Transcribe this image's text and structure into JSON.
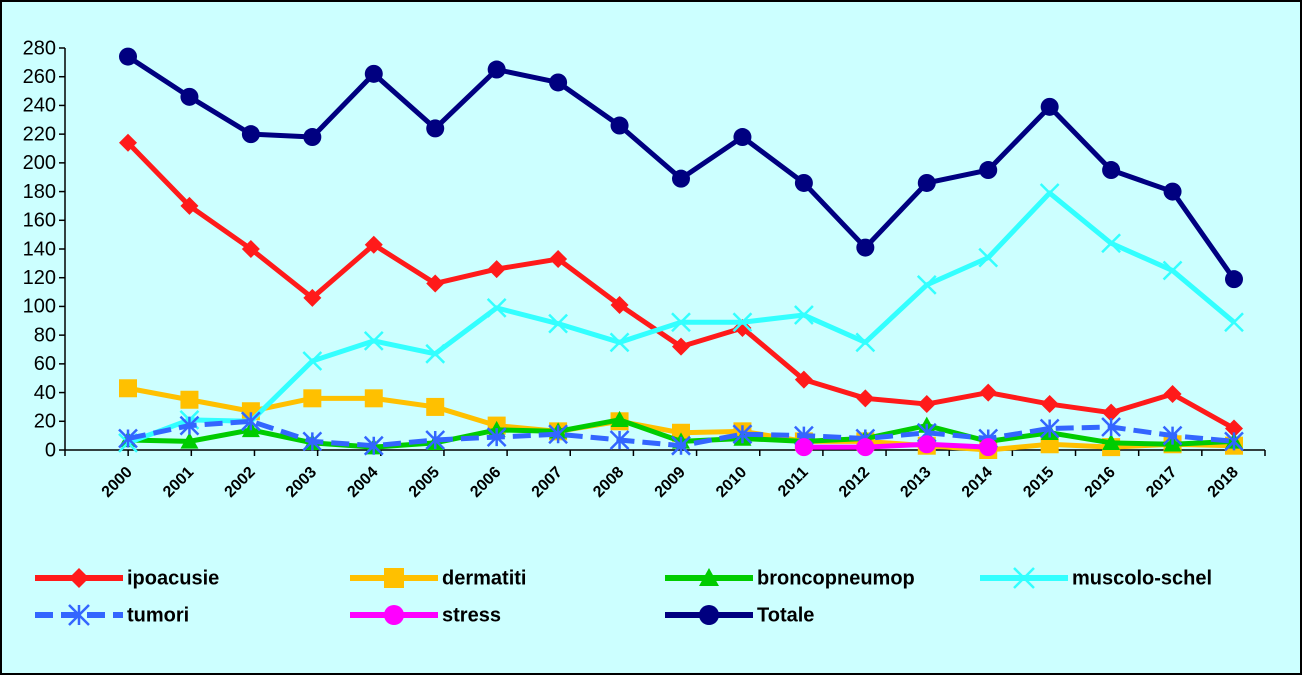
{
  "chart_data": {
    "type": "line",
    "categories": [
      "2000",
      "2001",
      "2002",
      "2003",
      "2004",
      "2005",
      "2006",
      "2007",
      "2008",
      "2009",
      "2010",
      "2011",
      "2012",
      "2013",
      "2014",
      "2015",
      "2016",
      "2017",
      "2018"
    ],
    "ylim": [
      0,
      280
    ],
    "yticks": [
      0,
      20,
      40,
      60,
      80,
      100,
      120,
      140,
      160,
      180,
      200,
      220,
      240,
      260,
      280
    ],
    "series": [
      {
        "name": "ipoacusie",
        "color": "#ff1a1a",
        "marker": "diamond",
        "values": [
          214,
          170,
          140,
          106,
          143,
          116,
          126,
          133,
          101,
          72,
          85,
          49,
          36,
          32,
          40,
          32,
          26,
          39,
          15
        ]
      },
      {
        "name": "dermatiti",
        "color": "#ffc000",
        "marker": "square",
        "values": [
          43,
          35,
          27,
          36,
          36,
          30,
          17,
          13,
          20,
          12,
          13,
          6,
          6,
          3,
          0,
          4,
          2,
          4,
          3
        ]
      },
      {
        "name": "broncopneumop",
        "color": "#00cc00",
        "marker": "triangle",
        "values": [
          7,
          6,
          14,
          5,
          2,
          5,
          14,
          13,
          21,
          6,
          8,
          6,
          8,
          17,
          6,
          12,
          5,
          4,
          6
        ]
      },
      {
        "name": "muscolo-schel",
        "color": "#33ffff",
        "marker": "x",
        "values": [
          5,
          21,
          20,
          62,
          76,
          67,
          99,
          88,
          75,
          89,
          89,
          94,
          75,
          115,
          134,
          179,
          144,
          125,
          89
        ]
      },
      {
        "name": "tumori",
        "color": "#3366ff",
        "marker": "star",
        "dash": true,
        "values": [
          8,
          17,
          20,
          6,
          3,
          7,
          9,
          11,
          7,
          3,
          11,
          10,
          8,
          12,
          8,
          15,
          16,
          10,
          6
        ]
      },
      {
        "name": "stress",
        "color": "#ff00ff",
        "marker": "circle",
        "values": [
          null,
          null,
          null,
          null,
          null,
          null,
          null,
          null,
          null,
          null,
          null,
          2,
          2,
          4,
          2,
          null,
          null,
          null,
          null
        ]
      },
      {
        "name": "Totale",
        "color": "#000080",
        "marker": "circle",
        "values": [
          274,
          246,
          220,
          218,
          262,
          224,
          265,
          256,
          226,
          189,
          218,
          186,
          141,
          186,
          195,
          239,
          195,
          180,
          119
        ]
      }
    ]
  }
}
